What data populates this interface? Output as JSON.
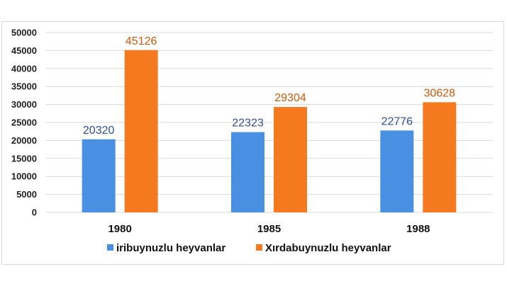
{
  "chart_data": {
    "type": "bar",
    "title": "",
    "xlabel": "",
    "ylabel": "",
    "categories": [
      "1980",
      "1985",
      "1988"
    ],
    "series": [
      {
        "name": "iribuynuzlu heyvanlar",
        "values": [
          20320,
          22323,
          22776
        ],
        "color": "#4a90e2",
        "label_color": "#2f4f8f"
      },
      {
        "name": "Xırdabuynuzlu heyvanlar",
        "values": [
          45126,
          29304,
          30628
        ],
        "color": "#f5791f",
        "label_color": "#c9590f"
      }
    ],
    "ylim": [
      0,
      50000
    ],
    "yticks": [
      0,
      5000,
      10000,
      15000,
      20000,
      25000,
      30000,
      35000,
      40000,
      45000,
      50000
    ],
    "grid": true,
    "legend_position": "bottom",
    "gridline_color": "#d9d9d9"
  }
}
